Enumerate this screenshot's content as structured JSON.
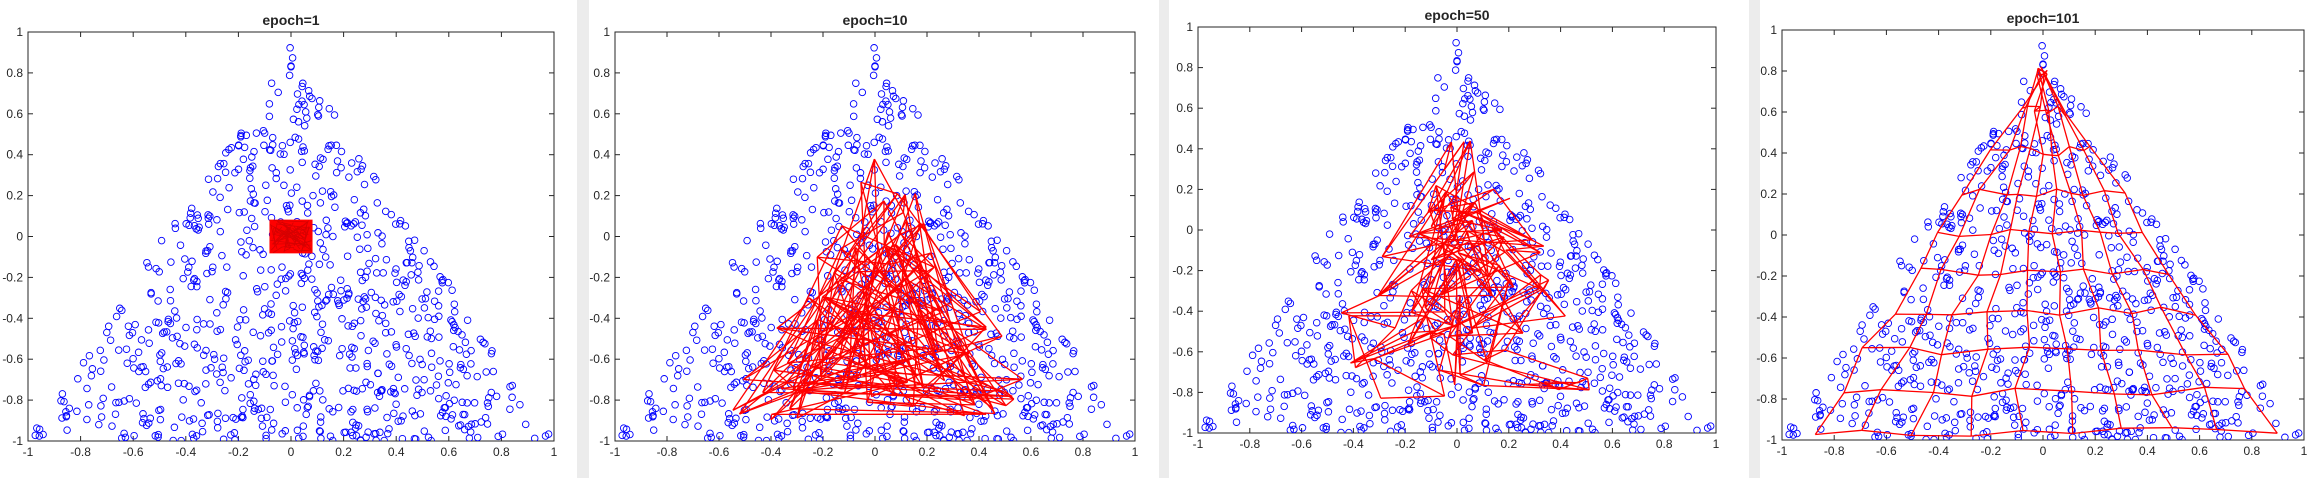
{
  "chart_data": [
    {
      "type": "scatter",
      "title": "epoch=1",
      "xlim": [
        -1,
        1
      ],
      "ylim": [
        -1,
        1
      ],
      "xticks": [
        "-1",
        "-0.8",
        "-0.6",
        "-0.4",
        "-0.2",
        "0",
        "0.2",
        "0.4",
        "0.6",
        "0.8",
        "1"
      ],
      "yticks": [
        "-1",
        "-0.8",
        "-0.6",
        "-0.4",
        "-0.2",
        "0",
        "0.2",
        "0.4",
        "0.6",
        "0.8",
        "1"
      ],
      "grid": false,
      "scatter_color": "#0000ff",
      "net_color": "#ff0000",
      "scatter_region": [
        [
          -1,
          -1
        ],
        [
          1,
          -1
        ],
        [
          0,
          0.93
        ]
      ],
      "net_region": [
        [
          -0.08,
          -0.08
        ],
        [
          0.08,
          -0.08
        ],
        [
          0.08,
          0.08
        ],
        [
          -0.08,
          0.08
        ]
      ],
      "net_state": "collapsed"
    },
    {
      "type": "scatter",
      "title": "epoch=10",
      "xlim": [
        -1,
        1
      ],
      "ylim": [
        -1,
        1
      ],
      "xticks": [
        "-1",
        "-0.8",
        "-0.6",
        "-0.4",
        "-0.2",
        "0",
        "0.2",
        "0.4",
        "0.6",
        "0.8",
        "1"
      ],
      "yticks": [
        "-1",
        "-0.8",
        "-0.6",
        "-0.4",
        "-0.2",
        "0",
        "0.2",
        "0.4",
        "0.6",
        "0.8",
        "1"
      ],
      "grid": false,
      "scatter_color": "#0000ff",
      "net_color": "#ff0000",
      "scatter_region": [
        [
          -1,
          -1
        ],
        [
          1,
          -1
        ],
        [
          0,
          0.93
        ]
      ],
      "net_region": [
        [
          -0.62,
          -0.9
        ],
        [
          0.68,
          -0.9
        ],
        [
          0.05,
          0.5
        ]
      ],
      "net_state": "tangled"
    },
    {
      "type": "scatter",
      "title": "epoch=50",
      "xlim": [
        -1,
        1
      ],
      "ylim": [
        -1,
        1
      ],
      "xticks": [
        "-1",
        "-0.8",
        "-0.6",
        "-0.4",
        "-0.2",
        "0",
        "0.2",
        "0.4",
        "0.6",
        "0.8",
        "1"
      ],
      "yticks": [
        "-1",
        "-0.8",
        "-0.6",
        "-0.4",
        "-0.2",
        "0",
        "0.2",
        "0.4",
        "0.6",
        "0.8",
        "1"
      ],
      "grid": false,
      "scatter_color": "#0000ff",
      "net_color": "#ff0000",
      "scatter_region": [
        [
          -1,
          -1
        ],
        [
          1,
          -1
        ],
        [
          0,
          0.93
        ]
      ],
      "net_region": [
        [
          -0.72,
          -0.88
        ],
        [
          0.72,
          -0.88
        ],
        [
          0.05,
          0.6
        ]
      ],
      "net_state": "unfolding"
    },
    {
      "type": "scatter",
      "title": "epoch=101",
      "xlim": [
        -1,
        1
      ],
      "ylim": [
        -1,
        1
      ],
      "xticks": [
        "-1",
        "-0.8",
        "-0.6",
        "-0.4",
        "-0.2",
        "0",
        "0.2",
        "0.4",
        "0.6",
        "0.8",
        "1"
      ],
      "yticks": [
        "-1",
        "-0.8",
        "-0.6",
        "-0.4",
        "-0.2",
        "0",
        "0.2",
        "0.4",
        "0.6",
        "0.8",
        "1"
      ],
      "grid": false,
      "scatter_color": "#0000ff",
      "net_color": "#ff0000",
      "scatter_region": [
        [
          -1,
          -1
        ],
        [
          1,
          -1
        ],
        [
          0,
          0.93
        ]
      ],
      "net_region": [
        [
          -0.88,
          -0.96
        ],
        [
          0.88,
          -0.96
        ],
        [
          0,
          0.8
        ]
      ],
      "net_state": "organized"
    }
  ]
}
